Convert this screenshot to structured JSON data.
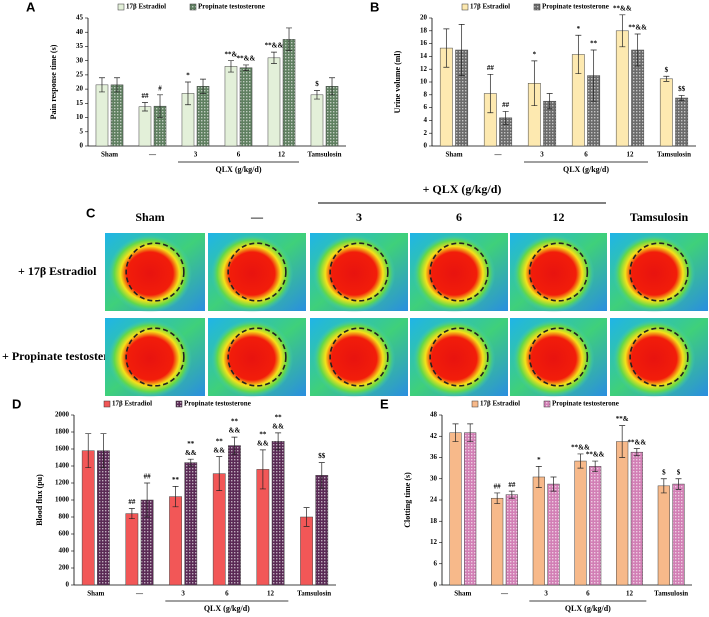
{
  "chart_data": [
    {
      "type": "bar",
      "panel": "A",
      "xlabel": "QLX (g/kg/d)",
      "ylabel": "Pain response time (s)",
      "categories": [
        "Sham",
        "—",
        "3",
        "6",
        "12",
        "Tamsulosin"
      ],
      "ylim": [
        0,
        45
      ],
      "yticks": [
        0,
        5,
        10,
        15,
        20,
        25,
        30,
        35,
        40,
        45
      ],
      "series": [
        {
          "name": "17β Estradiol",
          "color": "#e3f0d9",
          "pattern": false,
          "values": [
            21.5,
            13.8,
            18.5,
            28,
            31,
            18
          ],
          "errors": [
            2.5,
            1.5,
            4,
            2,
            2,
            1.5
          ],
          "annotations": [
            null,
            "##",
            "*",
            "**&",
            "**&&",
            "$"
          ]
        },
        {
          "name": "Propinate testosterone",
          "color": "#5f7f60",
          "pattern": true,
          "values": [
            21.5,
            14,
            21,
            27.5,
            37.5,
            21
          ],
          "errors": [
            2.5,
            4,
            2.5,
            1,
            4,
            3
          ],
          "annotations": [
            null,
            "#",
            null,
            "**&&",
            null,
            null
          ]
        }
      ]
    },
    {
      "type": "bar",
      "panel": "B",
      "xlabel": "QLX (g/kg/d)",
      "ylabel": "Urine volume (ml)",
      "categories": [
        "Sham",
        "—",
        "3",
        "6",
        "12",
        "Tamsulosin"
      ],
      "ylim": [
        0,
        20
      ],
      "yticks": [
        0,
        2,
        4,
        6,
        8,
        10,
        12,
        14,
        16,
        18,
        20
      ],
      "series": [
        {
          "name": "17β Estradiol",
          "color": "#fde9b0",
          "pattern": false,
          "values": [
            15.3,
            8.2,
            9.8,
            14.3,
            18,
            10.5
          ],
          "errors": [
            3,
            3,
            3.5,
            3,
            2.5,
            0.4
          ],
          "annotations": [
            null,
            "##",
            "*",
            "*",
            "**&&",
            "$"
          ]
        },
        {
          "name": "Propinate testosterone",
          "color": "#6b6b6b",
          "pattern": true,
          "values": [
            15,
            4.4,
            7,
            11,
            15,
            7.5
          ],
          "errors": [
            4,
            1,
            1.2,
            4,
            2.5,
            0.4
          ],
          "annotations": [
            null,
            "##",
            null,
            "**",
            "**&&",
            "$$"
          ]
        }
      ]
    },
    {
      "type": "bar",
      "panel": "D",
      "xlabel": "QLX (g/kg/d)",
      "ylabel": "Blood flux  (pu)",
      "categories": [
        "Sham",
        "—",
        "3",
        "6",
        "12",
        "Tamsulosin"
      ],
      "ylim": [
        0,
        2000
      ],
      "yticks": [
        0,
        200,
        400,
        600,
        800,
        1000,
        1200,
        1400,
        1600,
        1800,
        2000
      ],
      "series": [
        {
          "name": "17β Estradiol",
          "color": "#f25757",
          "pattern": false,
          "values": [
            1580,
            840,
            1040,
            1310,
            1360,
            800
          ],
          "errors": [
            200,
            60,
            120,
            200,
            230,
            110
          ],
          "annotations": [
            null,
            "##",
            "**",
            [
              "**",
              "&&"
            ],
            [
              "**",
              "&&"
            ],
            null
          ]
        },
        {
          "name": "Propinate testosterone",
          "color": "#5a2a55",
          "pattern": true,
          "values": [
            1580,
            1000,
            1440,
            1640,
            1690,
            1290
          ],
          "errors": [
            200,
            200,
            40,
            100,
            100,
            150
          ],
          "annotations": [
            null,
            "##",
            [
              "**",
              "&&"
            ],
            [
              "**",
              "&&"
            ],
            [
              "**",
              "&&"
            ],
            "$$"
          ]
        }
      ]
    },
    {
      "type": "bar",
      "panel": "E",
      "xlabel": "QLX (g/kg/d)",
      "ylabel": "Clotting time (s)",
      "categories": [
        "Sham",
        "—",
        "3",
        "6",
        "12",
        "Tamsulosin"
      ],
      "ylim": [
        0,
        48
      ],
      "yticks": [
        0,
        6,
        12,
        18,
        24,
        30,
        36,
        42,
        48
      ],
      "series": [
        {
          "name": "17β Estradiol",
          "color": "#f7b98a",
          "pattern": false,
          "values": [
            43,
            24.5,
            30.5,
            35,
            40.5,
            28
          ],
          "errors": [
            2.5,
            1.5,
            3,
            2,
            4.5,
            2
          ],
          "annotations": [
            null,
            "##",
            "*",
            "**&&",
            "**&",
            "$"
          ]
        },
        {
          "name": "Propinate testosterone",
          "color": "#d27fb5",
          "pattern": true,
          "values": [
            43,
            25.5,
            28.5,
            33.5,
            37.5,
            28.5
          ],
          "errors": [
            2.5,
            1,
            2,
            1.5,
            1,
            1.5
          ],
          "annotations": [
            null,
            "##",
            null,
            "**&&",
            "**&&",
            "$"
          ]
        }
      ]
    }
  ],
  "panel_c": {
    "letter": "C",
    "group_label": "+ QLX (g/kg/d)",
    "columns": [
      "Sham",
      "—",
      "3",
      "6",
      "12",
      "Tamsulosin"
    ],
    "rows": [
      "+ 17β Estradiol",
      "+ Propinate testosterone"
    ]
  }
}
